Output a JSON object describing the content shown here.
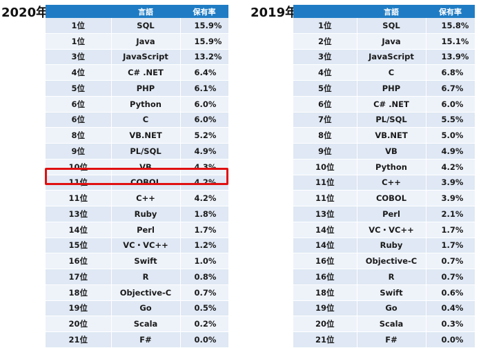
{
  "left": {
    "title": "2020年",
    "headers": [
      "",
      "言語",
      "保有率"
    ],
    "rows": [
      [
        "1位",
        "SQL",
        "15.9%"
      ],
      [
        "1位",
        "Java",
        "15.9%"
      ],
      [
        "3位",
        "JavaScript",
        "13.2%"
      ],
      [
        "4位",
        "C# .NET",
        "6.4%"
      ],
      [
        "5位",
        "PHP",
        "6.1%"
      ],
      [
        "6位",
        "Python",
        "6.0%"
      ],
      [
        "6位",
        "C",
        "6.0%"
      ],
      [
        "8位",
        "VB.NET",
        "5.2%"
      ],
      [
        "9位",
        "PL/SQL",
        "4.9%"
      ],
      [
        "10位",
        "VB",
        "4.3%"
      ],
      [
        "11位",
        "COBOL",
        "4.2%"
      ],
      [
        "11位",
        "C++",
        "4.2%"
      ],
      [
        "13位",
        "Ruby",
        "1.8%"
      ],
      [
        "14位",
        "Perl",
        "1.7%"
      ],
      [
        "15位",
        "VC・VC++",
        "1.2%"
      ],
      [
        "16位",
        "Swift",
        "1.0%"
      ],
      [
        "17位",
        "R",
        "0.8%"
      ],
      [
        "18位",
        "Objective-C",
        "0.7%"
      ],
      [
        "19位",
        "Go",
        "0.5%"
      ],
      [
        "20位",
        "Scala",
        "0.2%"
      ],
      [
        "21位",
        "F#",
        "0.0%"
      ]
    ],
    "highlight_color": "#e01010"
  },
  "right": {
    "title": "2019年",
    "headers": [
      "",
      "言語",
      "保有率"
    ],
    "rows": [
      [
        "1位",
        "SQL",
        "15.8%"
      ],
      [
        "2位",
        "Java",
        "15.1%"
      ],
      [
        "3位",
        "JavaScript",
        "13.9%"
      ],
      [
        "4位",
        "C",
        "6.8%"
      ],
      [
        "5位",
        "PHP",
        "6.7%"
      ],
      [
        "6位",
        "C# .NET",
        "6.0%"
      ],
      [
        "7位",
        "PL/SQL",
        "5.5%"
      ],
      [
        "8位",
        "VB.NET",
        "5.0%"
      ],
      [
        "9位",
        "VB",
        "4.9%"
      ],
      [
        "10位",
        "Python",
        "4.2%"
      ],
      [
        "11位",
        "C++",
        "3.9%"
      ],
      [
        "11位",
        "COBOL",
        "3.9%"
      ],
      [
        "13位",
        "Perl",
        "2.1%"
      ],
      [
        "14位",
        "VC・VC++",
        "1.7%"
      ],
      [
        "14位",
        "Ruby",
        "1.7%"
      ],
      [
        "16位",
        "Objective-C",
        "0.7%"
      ],
      [
        "16位",
        "R",
        "0.7%"
      ],
      [
        "18位",
        "Swift",
        "0.6%"
      ],
      [
        "19位",
        "Go",
        "0.4%"
      ],
      [
        "20位",
        "Scala",
        "0.3%"
      ],
      [
        "21位",
        "F#",
        "0.0%"
      ]
    ]
  },
  "colors": {
    "header_bg": "#1f7cc4",
    "row_odd": "#dfe8f4",
    "row_even": "#eef3fa",
    "highlight": "#e01010"
  }
}
